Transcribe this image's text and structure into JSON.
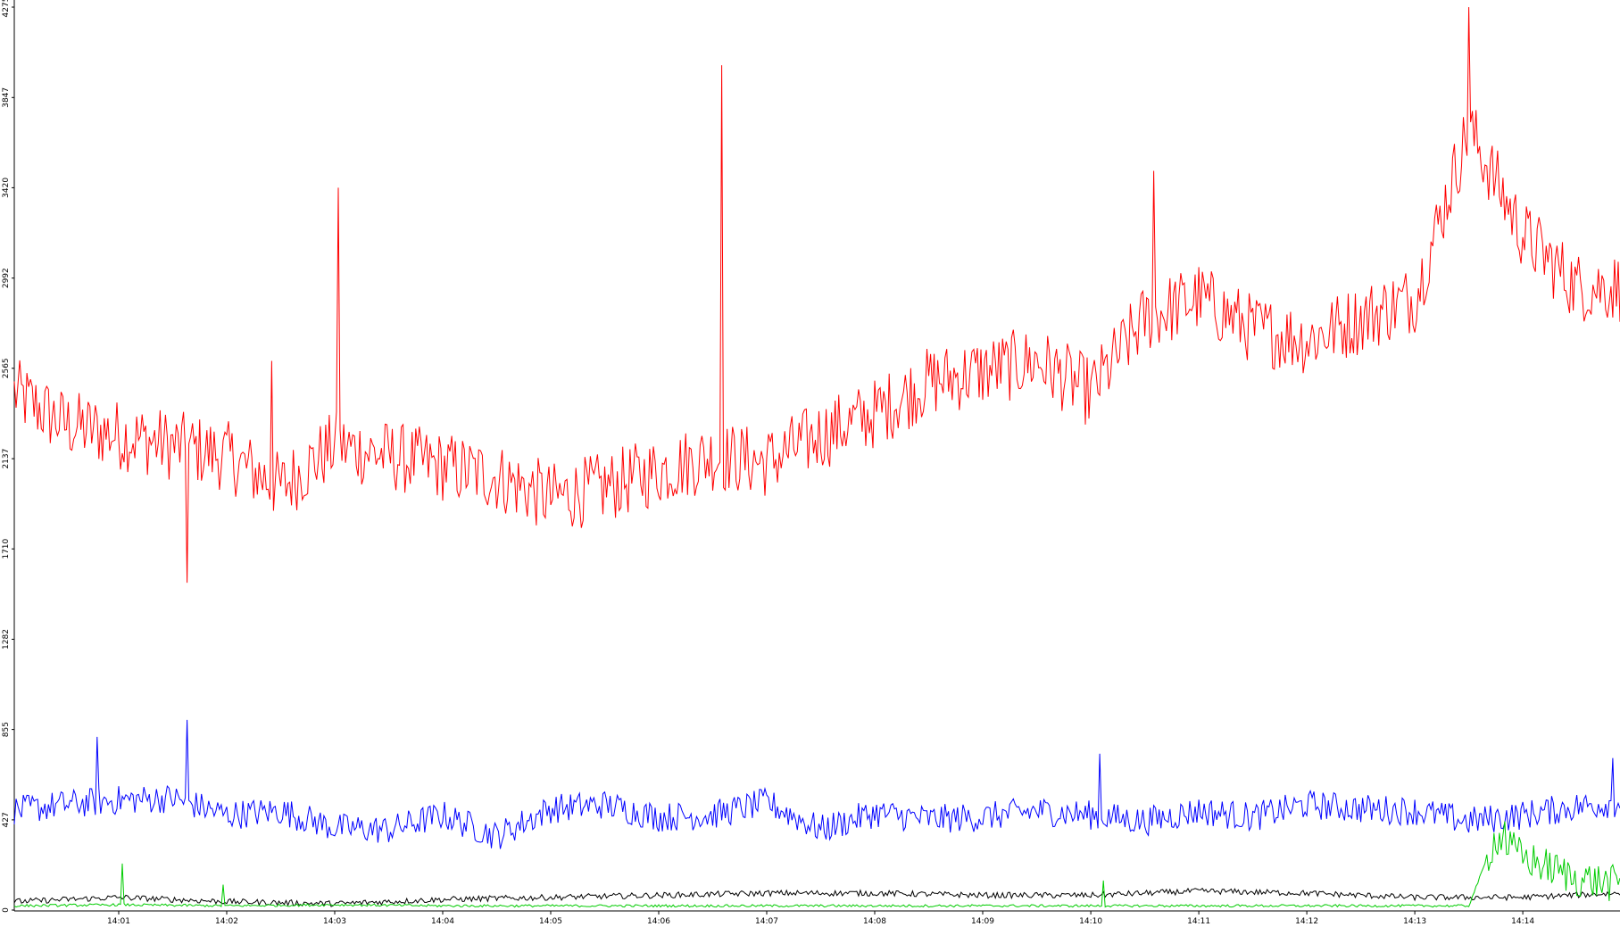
{
  "chart_data": {
    "type": "line",
    "title": "",
    "xlabel": "",
    "ylabel": "",
    "ylim": [
      0,
      4275
    ],
    "y_ticks": [
      "0",
      "427",
      "855",
      "1282",
      "1710",
      "2137",
      "2565",
      "2992",
      "3420",
      "3847",
      "4275"
    ],
    "x_ticks": [
      "14:01",
      "14:02",
      "14:03",
      "14:04",
      "14:05",
      "14:06",
      "14:07",
      "14:08",
      "14:09",
      "14:10",
      "14:11",
      "14:12",
      "14:13",
      "14:14"
    ],
    "x_start": "14:00:02",
    "x_end": "14:14:54",
    "grid": false,
    "legend": "none",
    "series_style": "noisy per-second trace; values below are approximate readings every 30 s",
    "series": [
      {
        "color": "#ff0000",
        "x": [
          "14:00:02",
          "14:00:30",
          "14:01:00",
          "14:01:30",
          "14:02:00",
          "14:02:30",
          "14:03:00",
          "14:03:30",
          "14:04:00",
          "14:04:30",
          "14:05:00",
          "14:05:30",
          "14:06:00",
          "14:06:30",
          "14:07:00",
          "14:07:30",
          "14:08:00",
          "14:08:30",
          "14:09:00",
          "14:09:30",
          "14:10:00",
          "14:10:30",
          "14:11:00",
          "14:11:30",
          "14:12:00",
          "14:12:30",
          "14:13:00",
          "14:13:30",
          "14:14:00",
          "14:14:30",
          "14:14:54"
        ],
        "values": [
          2450,
          2300,
          2250,
          2200,
          2150,
          2000,
          2200,
          2150,
          2100,
          2050,
          1950,
          2000,
          2080,
          2150,
          2120,
          2250,
          2350,
          2500,
          2550,
          2600,
          2450,
          2800,
          2900,
          2750,
          2700,
          2800,
          2900,
          3700,
          3200,
          2950,
          2950
        ],
        "spikes": [
          {
            "x": "14:01:38",
            "value": 1550
          },
          {
            "x": "14:02:25",
            "value": 2600
          },
          {
            "x": "14:03:02",
            "value": 3420
          },
          {
            "x": "14:06:35",
            "value": 4000
          },
          {
            "x": "14:10:35",
            "value": 3500
          },
          {
            "x": "14:13:30",
            "value": 4275
          }
        ]
      },
      {
        "color": "#0000ff",
        "x": [
          "14:00:02",
          "14:00:30",
          "14:01:00",
          "14:01:30",
          "14:02:00",
          "14:02:30",
          "14:03:00",
          "14:03:30",
          "14:04:00",
          "14:04:30",
          "14:05:00",
          "14:05:30",
          "14:06:00",
          "14:06:30",
          "14:07:00",
          "14:07:30",
          "14:08:00",
          "14:08:30",
          "14:09:00",
          "14:09:30",
          "14:10:00",
          "14:10:30",
          "14:11:00",
          "14:11:30",
          "14:12:00",
          "14:12:30",
          "14:13:00",
          "14:13:30",
          "14:14:00",
          "14:14:30",
          "14:14:54"
        ],
        "values": [
          470,
          500,
          520,
          530,
          450,
          470,
          390,
          380,
          450,
          350,
          480,
          500,
          440,
          450,
          510,
          380,
          460,
          430,
          440,
          470,
          450,
          420,
          470,
          440,
          500,
          480,
          470,
          420,
          450,
          490,
          510
        ],
        "spikes": [
          {
            "x": "14:01:38",
            "value": 900
          },
          {
            "x": "14:00:48",
            "value": 820
          },
          {
            "x": "14:10:05",
            "value": 740
          },
          {
            "x": "14:14:50",
            "value": 720
          }
        ]
      },
      {
        "color": "#000000",
        "x": [
          "14:00:02",
          "14:01:00",
          "14:02:00",
          "14:03:00",
          "14:04:00",
          "14:05:00",
          "14:06:00",
          "14:07:00",
          "14:08:00",
          "14:09:00",
          "14:10:00",
          "14:11:00",
          "14:12:00",
          "14:13:00",
          "14:14:00",
          "14:14:54"
        ],
        "values": [
          40,
          60,
          40,
          30,
          50,
          60,
          70,
          80,
          80,
          70,
          70,
          90,
          80,
          60,
          60,
          80
        ],
        "spikes": []
      },
      {
        "color": "#00cc00",
        "x": [
          "14:00:02",
          "14:01:00",
          "14:02:00",
          "14:03:00",
          "14:04:00",
          "14:05:00",
          "14:06:00",
          "14:07:00",
          "14:08:00",
          "14:09:00",
          "14:10:00",
          "14:11:00",
          "14:12:00",
          "14:13:00",
          "14:13:30",
          "14:13:45",
          "14:14:00",
          "14:14:30",
          "14:14:54"
        ],
        "values": [
          20,
          25,
          20,
          25,
          20,
          20,
          20,
          20,
          20,
          20,
          20,
          20,
          20,
          20,
          20,
          350,
          250,
          150,
          120
        ],
        "spikes": [
          {
            "x": "14:01:02",
            "value": 220
          },
          {
            "x": "14:01:58",
            "value": 120
          },
          {
            "x": "14:10:07",
            "value": 140
          },
          {
            "x": "14:13:50",
            "value": 420
          }
        ]
      }
    ]
  }
}
